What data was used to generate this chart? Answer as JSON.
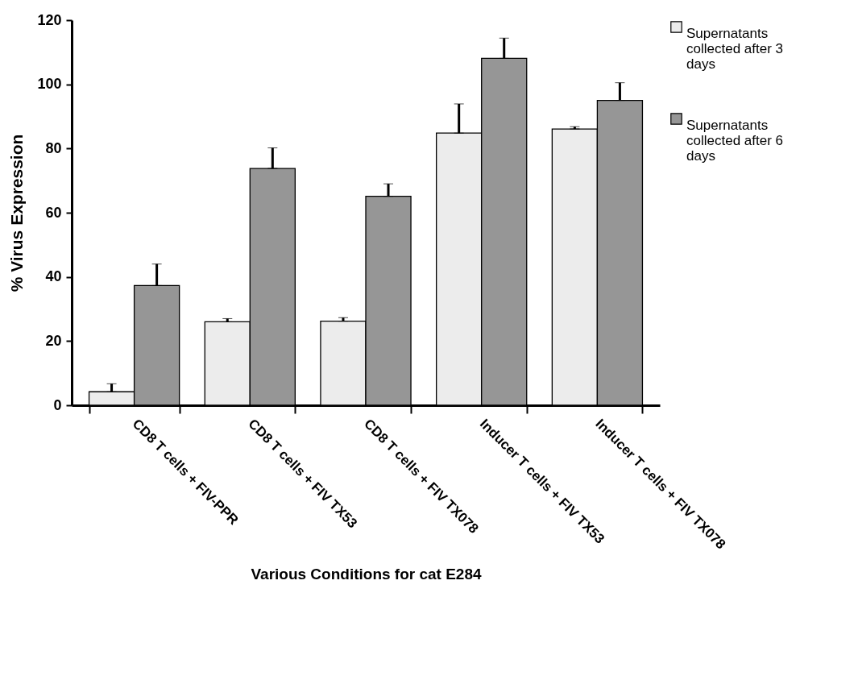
{
  "chart_data": {
    "type": "bar",
    "xlabel": "Various Conditions for cat E284",
    "ylabel": "% Virus Expression",
    "categories": [
      "CD8 T cells + FIV-PPR",
      "CD8 T cells + FIV TX53",
      "CD8 T cells + FIV TX078",
      "Inducer  T cells + FIV TX53",
      "Inducer T cells + FIV TX078"
    ],
    "series": [
      {
        "name": "Supernatants collected after 3 days",
        "color": "#ececec",
        "values": [
          4.2,
          26,
          26.2,
          84.8,
          86.1
        ],
        "errors": [
          [
            4.2,
            6.7
          ],
          [
            26,
            27
          ],
          [
            26.2,
            27.3
          ],
          [
            84.8,
            93.9
          ],
          [
            86.1,
            86.8
          ]
        ]
      },
      {
        "name": "Supernatants collected after 6 days",
        "color": "#969696",
        "values": [
          37.3,
          73.8,
          65.1,
          108.1,
          95
        ],
        "errors": [
          [
            37.3,
            44
          ],
          [
            73.8,
            80.2
          ],
          [
            65.1,
            69
          ],
          [
            108.1,
            114.4
          ],
          [
            95,
            100.5
          ]
        ]
      }
    ],
    "ylim": [
      0,
      120
    ],
    "yticks": [
      0,
      20,
      40,
      60,
      80,
      100,
      120
    ],
    "grid": false,
    "legend": "right"
  }
}
